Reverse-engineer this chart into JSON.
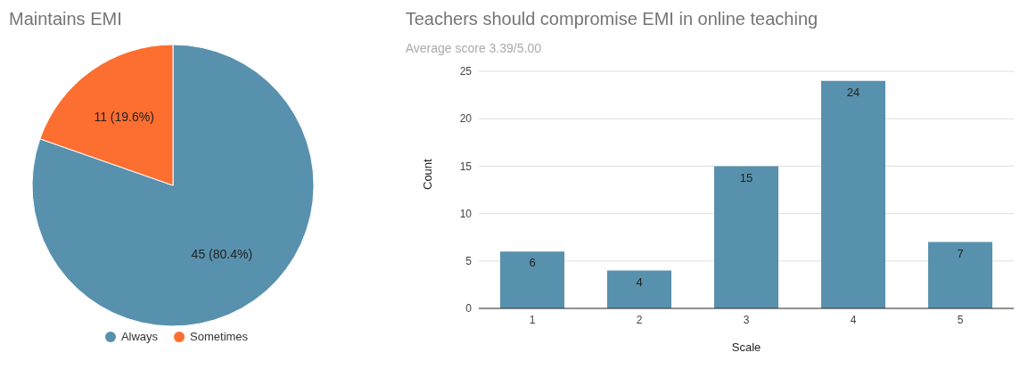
{
  "chart_data": [
    {
      "type": "pie",
      "title": "Maintains EMI",
      "categories": [
        "Always",
        "Sometimes"
      ],
      "values": [
        45,
        11
      ],
      "colors": [
        "#5891ad",
        "#fd6e31"
      ],
      "value_labels": [
        "45 (80.4%)",
        "11 (19.6%)"
      ],
      "legend": "bottom"
    },
    {
      "type": "bar",
      "title": "Teachers should compromise EMI in online teaching",
      "subtitle": "Average score 3.39/5.00",
      "xlabel": "Scale",
      "ylabel": "Count",
      "categories": [
        "1",
        "2",
        "3",
        "4",
        "5"
      ],
      "values": [
        6,
        4,
        15,
        24,
        7
      ],
      "color": "#5891ad",
      "ylim": [
        0,
        25
      ],
      "yticks": [
        0,
        5,
        10,
        15,
        20,
        25
      ],
      "grid": "y",
      "data_labels": true
    }
  ]
}
